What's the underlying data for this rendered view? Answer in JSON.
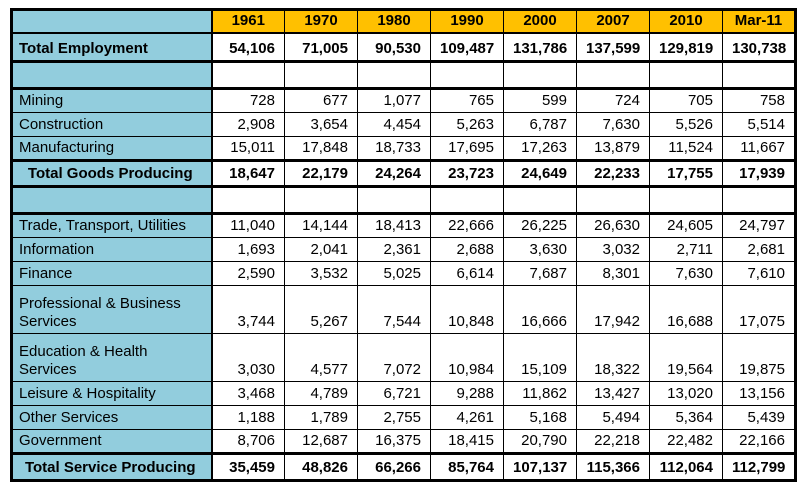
{
  "colors": {
    "header_bg": "#FFC000",
    "label_bg": "#92CDDD",
    "border": "#000000",
    "text": "#000000"
  },
  "table": {
    "corner_label": "",
    "columns": [
      "1961",
      "1970",
      "1980",
      "1990",
      "2000",
      "2007",
      "2010",
      "Mar-11"
    ],
    "rows": [
      {
        "label": "Total Employment",
        "kind": "grand-total",
        "values": [
          "54,106",
          "71,005",
          "90,530",
          "109,487",
          "131,786",
          "137,599",
          "129,819",
          "130,738"
        ]
      },
      {
        "label": "",
        "kind": "spacer",
        "values": [
          "",
          "",
          "",
          "",
          "",
          "",
          "",
          ""
        ]
      },
      {
        "label": "Mining",
        "kind": "category",
        "values": [
          "728",
          "677",
          "1,077",
          "765",
          "599",
          "724",
          "705",
          "758"
        ]
      },
      {
        "label": "Construction",
        "kind": "category",
        "values": [
          "2,908",
          "3,654",
          "4,454",
          "5,263",
          "6,787",
          "7,630",
          "5,526",
          "5,514"
        ]
      },
      {
        "label": "Manufacturing",
        "kind": "category",
        "values": [
          "15,011",
          "17,848",
          "18,733",
          "17,695",
          "17,263",
          "13,879",
          "11,524",
          "11,667"
        ]
      },
      {
        "label": "Total Goods Producing",
        "kind": "subtotal",
        "values": [
          "18,647",
          "22,179",
          "24,264",
          "23,723",
          "24,649",
          "22,233",
          "17,755",
          "17,939"
        ]
      },
      {
        "label": "",
        "kind": "spacer",
        "values": [
          "",
          "",
          "",
          "",
          "",
          "",
          "",
          ""
        ]
      },
      {
        "label": "Trade, Transport, Utilities",
        "kind": "category",
        "values": [
          "11,040",
          "14,144",
          "18,413",
          "22,666",
          "26,225",
          "26,630",
          "24,605",
          "24,797"
        ]
      },
      {
        "label": "Information",
        "kind": "category",
        "values": [
          "1,693",
          "2,041",
          "2,361",
          "2,688",
          "3,630",
          "3,032",
          "2,711",
          "2,681"
        ]
      },
      {
        "label": "Finance",
        "kind": "category",
        "values": [
          "2,590",
          "3,532",
          "5,025",
          "6,614",
          "7,687",
          "8,301",
          "7,630",
          "7,610"
        ]
      },
      {
        "label": "Professional & Business Services",
        "kind": "category-tall",
        "values": [
          "3,744",
          "5,267",
          "7,544",
          "10,848",
          "16,666",
          "17,942",
          "16,688",
          "17,075"
        ]
      },
      {
        "label": "Education & Health Services",
        "kind": "category-tall",
        "values": [
          "3,030",
          "4,577",
          "7,072",
          "10,984",
          "15,109",
          "18,322",
          "19,564",
          "19,875"
        ]
      },
      {
        "label": "Leisure & Hospitality",
        "kind": "category",
        "values": [
          "3,468",
          "4,789",
          "6,721",
          "9,288",
          "11,862",
          "13,427",
          "13,020",
          "13,156"
        ]
      },
      {
        "label": "Other Services",
        "kind": "category",
        "values": [
          "1,188",
          "1,789",
          "2,755",
          "4,261",
          "5,168",
          "5,494",
          "5,364",
          "5,439"
        ]
      },
      {
        "label": "Government",
        "kind": "category",
        "values": [
          "8,706",
          "12,687",
          "16,375",
          "18,415",
          "20,790",
          "22,218",
          "22,482",
          "22,166"
        ]
      },
      {
        "label": "Total Service Producing",
        "kind": "subtotal-end",
        "values": [
          "35,459",
          "48,826",
          "66,266",
          "85,764",
          "107,137",
          "115,366",
          "112,064",
          "112,799"
        ]
      }
    ]
  }
}
